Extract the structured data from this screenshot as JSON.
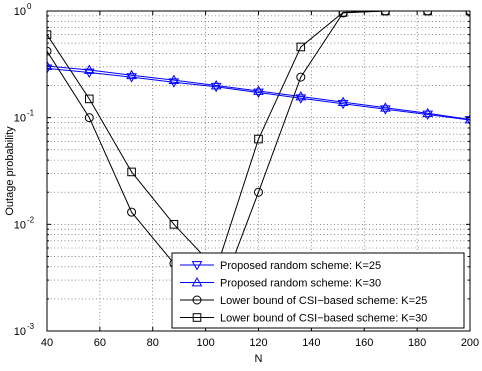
{
  "chart_data": {
    "type": "line",
    "xlabel": "N",
    "ylabel": "Outage probability",
    "xlim": [
      40,
      200
    ],
    "ylim": [
      0.001,
      1
    ],
    "yscale": "log",
    "grid": true,
    "legend_position": "bottom-right",
    "x_ticks": [
      "40",
      "60",
      "80",
      "100",
      "120",
      "140",
      "160",
      "180",
      "200"
    ],
    "y_ticks": [
      {
        "base": "10",
        "exp": "-3",
        "value": 0.001
      },
      {
        "base": "10",
        "exp": "-2",
        "value": 0.01
      },
      {
        "base": "10",
        "exp": "-1",
        "value": 0.1
      },
      {
        "base": "10",
        "exp": "0",
        "value": 1
      }
    ],
    "x": [
      40,
      56,
      72,
      88,
      104,
      120,
      136,
      152,
      168,
      184,
      200
    ],
    "series": [
      {
        "name": "Proposed random scheme: K=25",
        "color": "#0000ff",
        "marker": "triangle-down",
        "values": [
          0.29,
          0.265,
          0.24,
          0.215,
          0.195,
          0.172,
          0.152,
          0.135,
          0.12,
          0.107,
          0.095
        ]
      },
      {
        "name": "Proposed random scheme: K=30",
        "color": "#0000ff",
        "marker": "triangle-up",
        "values": [
          0.305,
          0.28,
          0.25,
          0.225,
          0.2,
          0.178,
          0.158,
          0.14,
          0.124,
          0.11,
          0.096
        ]
      },
      {
        "name": "Lower bound of CSI−based scheme: K=25",
        "color": "#000000",
        "marker": "circle",
        "values": [
          0.42,
          0.1,
          0.013,
          0.0043,
          0.0018,
          0.02,
          0.24,
          0.96,
          1.0,
          1.0,
          1.0
        ]
      },
      {
        "name": "Lower bound of CSI−based scheme: K=30",
        "color": "#000000",
        "marker": "square",
        "values": [
          0.6,
          0.15,
          0.031,
          0.01,
          0.0038,
          0.063,
          0.46,
          0.97,
          1.0,
          1.0,
          1.0
        ]
      }
    ]
  }
}
